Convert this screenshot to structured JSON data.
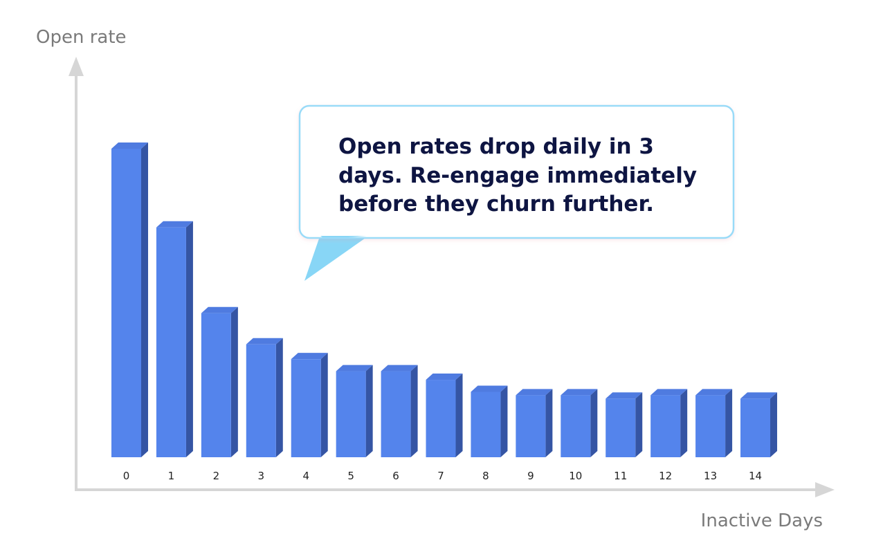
{
  "chart_data": {
    "type": "bar",
    "categories": [
      "0",
      "1",
      "2",
      "3",
      "4",
      "5",
      "6",
      "7",
      "8",
      "9",
      "10",
      "11",
      "12",
      "13",
      "14"
    ],
    "values": [
      100,
      74.5,
      46.7,
      36.6,
      31.8,
      27.9,
      27.9,
      25.1,
      21.2,
      20.1,
      20.1,
      19.0,
      20.1,
      20.1,
      19.0
    ],
    "title": "",
    "xlabel": "Inactive Days",
    "ylabel": "Open rate",
    "ylim": [
      0,
      100
    ],
    "grid": false,
    "legend": "none",
    "bar_color": "#5484ec",
    "bar_side_color": "#3555a4",
    "bar_top_color": "#4f7be0",
    "axis_color": "#d6d6d6",
    "annotation": {
      "lines": [
        "Open rates drop daily in 3",
        "days. Re-engage immediately",
        "before they churn further."
      ],
      "border_color": "#99dbf8",
      "pointer_color": "#88d6f6"
    }
  }
}
